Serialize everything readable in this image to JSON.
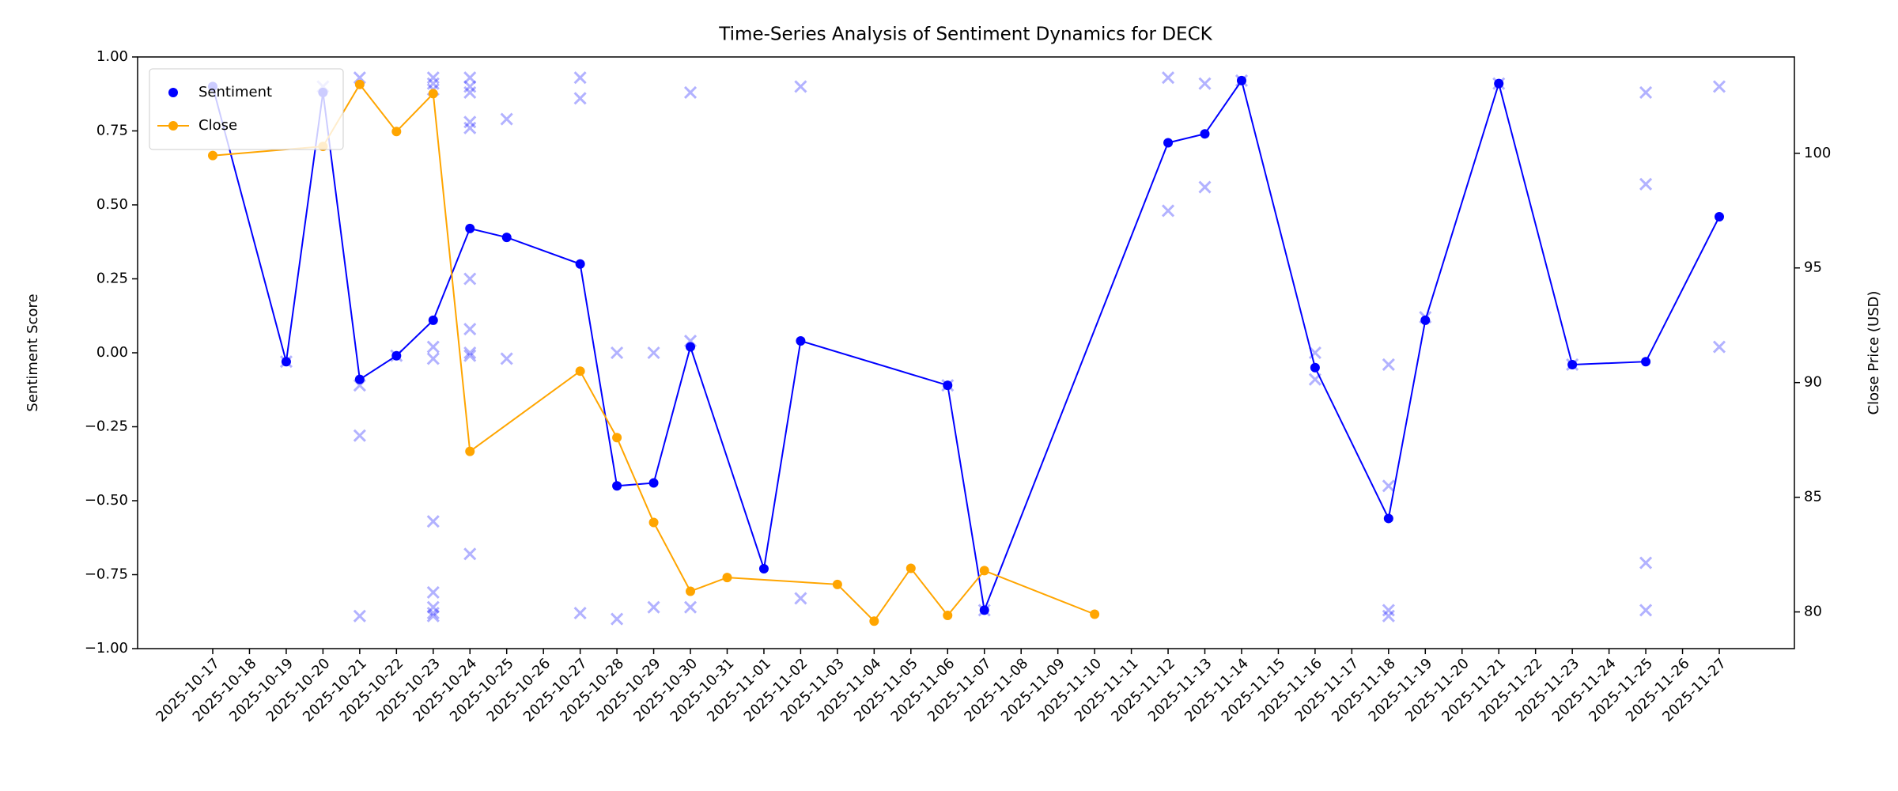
{
  "chart_data": {
    "type": "line",
    "title": "Time-Series Analysis of Sentiment Dynamics for DECK",
    "ylabel": "Sentiment Score",
    "y2label": "Close Price (USD)",
    "ylim": [
      -1,
      1
    ],
    "yticks": [
      {
        "value": -1,
        "label": "−1.00"
      },
      {
        "value": -0.75,
        "label": "−0.75"
      },
      {
        "value": -0.5,
        "label": "−0.50"
      },
      {
        "value": -0.25,
        "label": "−0.25"
      },
      {
        "value": 0,
        "label": "0.00"
      },
      {
        "value": 0.25,
        "label": "0.25"
      },
      {
        "value": 0.5,
        "label": "0.50"
      },
      {
        "value": 0.75,
        "label": "0.75"
      },
      {
        "value": 1,
        "label": "1.00"
      }
    ],
    "y2lim": [
      78.4,
      104.2
    ],
    "y2ticks": [
      80,
      85,
      90,
      95,
      100
    ],
    "xticks": [
      "2025-10-17",
      "2025-10-18",
      "2025-10-19",
      "2025-10-20",
      "2025-10-21",
      "2025-10-22",
      "2025-10-23",
      "2025-10-24",
      "2025-10-25",
      "2025-10-26",
      "2025-10-27",
      "2025-10-28",
      "2025-10-29",
      "2025-10-30",
      "2025-10-31",
      "2025-11-01",
      "2025-11-02",
      "2025-11-03",
      "2025-11-04",
      "2025-11-05",
      "2025-11-06",
      "2025-11-07",
      "2025-11-08",
      "2025-11-09",
      "2025-11-10",
      "2025-11-11",
      "2025-11-12",
      "2025-11-13",
      "2025-11-14",
      "2025-11-15",
      "2025-11-16",
      "2025-11-17",
      "2025-11-18",
      "2025-11-19",
      "2025-11-20",
      "2025-11-21",
      "2025-11-22",
      "2025-11-23",
      "2025-11-24",
      "2025-11-25",
      "2025-11-26",
      "2025-11-27"
    ],
    "legend": "upper left",
    "series": [
      {
        "type": "scatter",
        "color": "#0000ff",
        "x": [
          "2025-10-19",
          "2025-10-20",
          "2025-10-21",
          "2025-10-21",
          "2025-10-21",
          "2025-10-21",
          "2025-10-22",
          "2025-10-23",
          "2025-10-23",
          "2025-10-23",
          "2025-10-23",
          "2025-10-23",
          "2025-10-23",
          "2025-10-23",
          "2025-10-23",
          "2025-10-23",
          "2025-10-23",
          "2025-10-24",
          "2025-10-24",
          "2025-10-24",
          "2025-10-24",
          "2025-10-24",
          "2025-10-24",
          "2025-10-24",
          "2025-10-24",
          "2025-10-24",
          "2025-10-24",
          "2025-10-25",
          "2025-10-25",
          "2025-10-27",
          "2025-10-27",
          "2025-10-27",
          "2025-10-28",
          "2025-10-28",
          "2025-10-29",
          "2025-10-29",
          "2025-10-30",
          "2025-10-30",
          "2025-10-30",
          "2025-11-02",
          "2025-11-02",
          "2025-11-06",
          "2025-11-07",
          "2025-11-12",
          "2025-11-12",
          "2025-11-13",
          "2025-11-13",
          "2025-11-14",
          "2025-11-16",
          "2025-11-16",
          "2025-11-18",
          "2025-11-18",
          "2025-11-18",
          "2025-11-18",
          "2025-11-19",
          "2025-11-21",
          "2025-11-23",
          "2025-11-25",
          "2025-11-25",
          "2025-11-25",
          "2025-11-25",
          "2025-11-27",
          "2025-11-27"
        ],
        "values": [
          -0.03,
          0.9,
          0.93,
          -0.11,
          -0.28,
          -0.89,
          -0.01,
          0.93,
          0.91,
          0.89,
          0.02,
          -0.02,
          -0.57,
          -0.81,
          -0.86,
          -0.88,
          -0.89,
          0.93,
          0.9,
          0.88,
          0.78,
          0.76,
          0.25,
          0.08,
          0.0,
          -0.01,
          -0.68,
          0.79,
          -0.02,
          0.93,
          0.86,
          -0.88,
          0.0,
          -0.9,
          0.0,
          -0.86,
          0.88,
          0.04,
          -0.86,
          0.9,
          -0.83,
          -0.11,
          -0.87,
          0.93,
          0.48,
          0.91,
          0.56,
          0.92,
          0.0,
          -0.09,
          -0.04,
          -0.45,
          -0.87,
          -0.89,
          0.12,
          0.91,
          -0.04,
          0.88,
          0.57,
          -0.71,
          -0.87,
          0.9,
          0.02
        ]
      },
      {
        "type": "line",
        "name": "Sentiment",
        "color": "#0000ff",
        "legend_marker_only": true,
        "x": [
          "2025-10-17",
          "2025-10-19",
          "2025-10-20",
          "2025-10-21",
          "2025-10-22",
          "2025-10-23",
          "2025-10-24",
          "2025-10-25",
          "2025-10-27",
          "2025-10-28",
          "2025-10-29",
          "2025-10-30",
          "2025-11-01",
          "2025-11-02",
          "2025-11-06",
          "2025-11-07",
          "2025-11-12",
          "2025-11-13",
          "2025-11-14",
          "2025-11-16",
          "2025-11-18",
          "2025-11-19",
          "2025-11-21",
          "2025-11-23",
          "2025-11-25",
          "2025-11-27"
        ],
        "values": [
          0.9,
          -0.03,
          0.88,
          -0.09,
          -0.01,
          0.11,
          0.42,
          0.39,
          0.3,
          -0.45,
          -0.44,
          0.02,
          -0.73,
          0.04,
          -0.11,
          -0.87,
          0.71,
          0.74,
          0.92,
          -0.05,
          -0.56,
          0.11,
          0.91,
          -0.04,
          -0.03,
          0.46
        ]
      },
      {
        "type": "line",
        "name": "Close",
        "color": "#ffa500",
        "axis": "y2",
        "x": [
          "2025-10-17",
          "2025-10-20",
          "2025-10-21",
          "2025-10-22",
          "2025-10-23",
          "2025-10-24",
          "2025-10-27",
          "2025-10-28",
          "2025-10-29",
          "2025-10-30",
          "2025-10-31",
          "2025-11-03",
          "2025-11-04",
          "2025-11-05",
          "2025-11-06",
          "2025-11-07",
          "2025-11-10"
        ],
        "values": [
          99.9,
          100.3,
          103.0,
          100.95,
          102.6,
          87.0,
          90.5,
          87.6,
          83.9,
          80.9,
          81.5,
          81.2,
          79.6,
          81.9,
          79.85,
          81.8,
          79.9
        ]
      }
    ]
  }
}
